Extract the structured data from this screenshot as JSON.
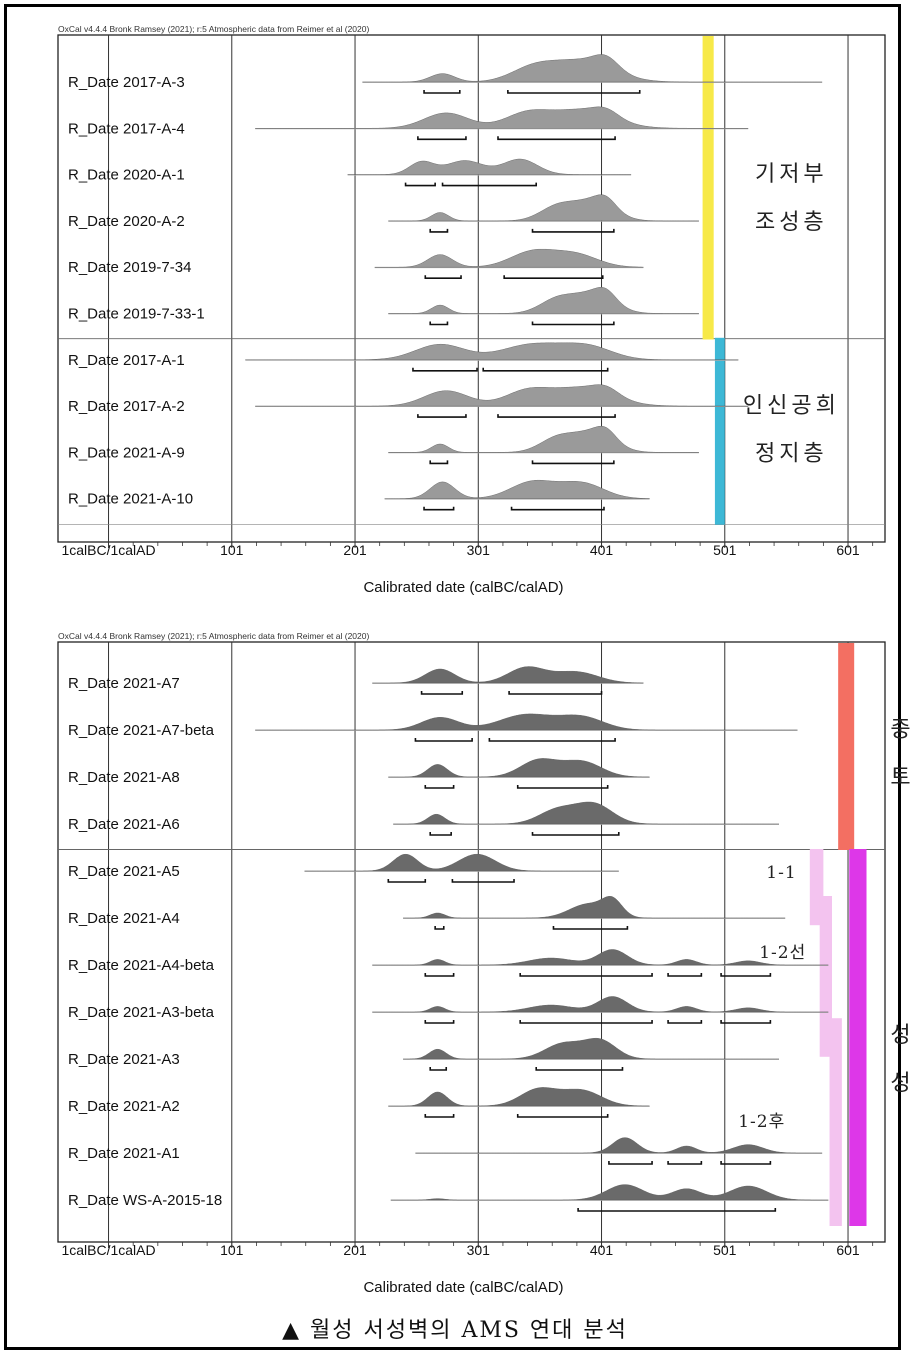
{
  "caption": "▲ 월성 서성벽의 AMS 연대 분석",
  "chart_data": [
    {
      "type": "ridge",
      "header": "OxCal v4.4.4 Bronk Ramsey (2021); r:5 Atmospheric data from Reimer et al (2020)",
      "xlabel": "Calibrated date (calBC/calAD)",
      "xlim": [
        -40,
        631
      ],
      "xticks": [
        {
          "value": 1,
          "label": "1calBC/1calAD"
        },
        {
          "value": 101,
          "label": "101"
        },
        {
          "value": 201,
          "label": "201"
        },
        {
          "value": 301,
          "label": "301"
        },
        {
          "value": 401,
          "label": "401"
        },
        {
          "value": 501,
          "label": "501"
        },
        {
          "value": 601,
          "label": "601"
        }
      ],
      "divider_after": 5,
      "samples": [
        {
          "label": "R_Date 2017-A-3",
          "range": [
            207,
            580
          ],
          "peaks": [
            [
              272,
              10,
              0.3
            ],
            [
              345,
              18,
              0.45
            ],
            [
              385,
              25,
              0.75
            ],
            [
              405,
              10,
              0.4
            ]
          ],
          "bars": [
            [
              257,
              286
            ],
            [
              325,
              432
            ]
          ]
        },
        {
          "label": "R_Date 2017-A-4",
          "range": [
            120,
            520
          ],
          "peaks": [
            [
              275,
              18,
              0.55
            ],
            [
              340,
              18,
              0.5
            ],
            [
              385,
              25,
              0.65
            ],
            [
              405,
              10,
              0.25
            ]
          ],
          "bars": [
            [
              252,
              291
            ],
            [
              317,
              412
            ]
          ]
        },
        {
          "label": "R_Date 2020-A-1",
          "range": [
            195,
            425
          ],
          "peaks": [
            [
              255,
              10,
              0.45
            ],
            [
              290,
              15,
              0.5
            ],
            [
              335,
              14,
              0.55
            ]
          ],
          "bars": [
            [
              242,
              266
            ],
            [
              272,
              348
            ]
          ]
        },
        {
          "label": "R_Date 2020-A-2",
          "range": [
            228,
            480
          ],
          "peaks": [
            [
              270,
              7,
              0.3
            ],
            [
              365,
              14,
              0.5
            ],
            [
              395,
              16,
              0.7
            ],
            [
              405,
              8,
              0.3
            ]
          ],
          "bars": [
            [
              262,
              276
            ],
            [
              345,
              411
            ]
          ]
        },
        {
          "label": "R_Date 2019-7-34",
          "range": [
            217,
            435
          ],
          "peaks": [
            [
              270,
              10,
              0.45
            ],
            [
              345,
              18,
              0.55
            ],
            [
              380,
              18,
              0.45
            ]
          ],
          "bars": [
            [
              258,
              287
            ],
            [
              322,
              402
            ]
          ]
        },
        {
          "label": "R_Date 2019-7-33-1",
          "range": [
            228,
            480
          ],
          "peaks": [
            [
              270,
              7,
              0.3
            ],
            [
              365,
              14,
              0.5
            ],
            [
              395,
              16,
              0.7
            ],
            [
              405,
              8,
              0.3
            ]
          ],
          "bars": [
            [
              262,
              276
            ],
            [
              345,
              411
            ]
          ]
        },
        {
          "label": "R_Date 2017-A-1",
          "range": [
            112,
            512
          ],
          "peaks": [
            [
              270,
              20,
              0.55
            ],
            [
              345,
              25,
              0.55
            ],
            [
              390,
              20,
              0.45
            ]
          ],
          "bars": [
            [
              248,
              300
            ],
            [
              305,
              406
            ]
          ]
        },
        {
          "label": "R_Date 2017-A-2",
          "range": [
            120,
            520
          ],
          "peaks": [
            [
              275,
              18,
              0.55
            ],
            [
              340,
              18,
              0.5
            ],
            [
              385,
              25,
              0.65
            ],
            [
              405,
              10,
              0.25
            ]
          ],
          "bars": [
            [
              252,
              291
            ],
            [
              317,
              412
            ]
          ]
        },
        {
          "label": "R_Date 2021-A-9",
          "range": [
            228,
            480
          ],
          "peaks": [
            [
              270,
              7,
              0.3
            ],
            [
              365,
              14,
              0.5
            ],
            [
              395,
              16,
              0.7
            ],
            [
              405,
              8,
              0.3
            ]
          ],
          "bars": [
            [
              262,
              276
            ],
            [
              345,
              411
            ]
          ]
        },
        {
          "label": "R_Date 2021-A-10",
          "range": [
            225,
            440
          ],
          "peaks": [
            [
              272,
              10,
              0.6
            ],
            [
              345,
              18,
              0.6
            ],
            [
              385,
              18,
              0.55
            ]
          ],
          "bars": [
            [
              257,
              281
            ],
            [
              328,
              403
            ]
          ]
        }
      ],
      "phase_bars": [
        {
          "color": "#f7e948",
          "x": [
            483,
            492
          ],
          "rows": [
            0,
            5
          ]
        },
        {
          "color": "#3db8d6",
          "x": [
            493,
            501
          ],
          "rows": [
            6,
            9
          ]
        }
      ],
      "group_labels": [
        {
          "lines": [
            "기저부",
            "조성층"
          ],
          "x": 555,
          "rows": [
            0,
            5
          ]
        },
        {
          "lines": [
            "인신공희",
            "정지층"
          ],
          "x": 555,
          "rows": [
            6,
            9
          ]
        }
      ]
    },
    {
      "type": "ridge",
      "header": "OxCal v4.4.4 Bronk Ramsey (2021); r:5 Atmospheric data from Reimer et al (2020)",
      "xlabel": "Calibrated date (calBC/calAD)",
      "xlim": [
        -40,
        631
      ],
      "xticks": [
        {
          "value": 1,
          "label": "1calBC/1calAD"
        },
        {
          "value": 101,
          "label": "101"
        },
        {
          "value": 201,
          "label": "201"
        },
        {
          "value": 301,
          "label": "301"
        },
        {
          "value": 401,
          "label": "401"
        },
        {
          "value": 501,
          "label": "501"
        },
        {
          "value": 601,
          "label": "601"
        }
      ],
      "divider_after": 3,
      "samples": [
        {
          "label": "R_Date 2021-A7",
          "range": [
            215,
            435
          ],
          "peaks": [
            [
              270,
              12,
              0.5
            ],
            [
              340,
              15,
              0.55
            ],
            [
              380,
              18,
              0.4
            ]
          ],
          "bars": [
            [
              255,
              288
            ],
            [
              326,
              401
            ]
          ]
        },
        {
          "label": "R_Date 2021-A7-beta",
          "range": [
            120,
            560
          ],
          "peaks": [
            [
              270,
              15,
              0.45
            ],
            [
              340,
              22,
              0.55
            ],
            [
              385,
              18,
              0.45
            ]
          ],
          "bars": [
            [
              250,
              296
            ],
            [
              310,
              412
            ]
          ]
        },
        {
          "label": "R_Date 2021-A8",
          "range": [
            228,
            440
          ],
          "peaks": [
            [
              268,
              8,
              0.45
            ],
            [
              350,
              15,
              0.6
            ],
            [
              385,
              16,
              0.55
            ]
          ],
          "bars": [
            [
              258,
              281
            ],
            [
              333,
              406
            ]
          ]
        },
        {
          "label": "R_Date 2021-A6",
          "range": [
            232,
            545
          ],
          "peaks": [
            [
              267,
              7,
              0.35
            ],
            [
              365,
              15,
              0.5
            ],
            [
              395,
              15,
              0.7
            ]
          ],
          "bars": [
            [
              262,
              279
            ],
            [
              345,
              415
            ]
          ]
        },
        {
          "label": "R_Date 2021-A5",
          "range": [
            160,
            415
          ],
          "peaks": [
            [
              242,
              10,
              0.6
            ],
            [
              300,
              15,
              0.6
            ]
          ],
          "bars": [
            [
              228,
              258
            ],
            [
              280,
              330
            ]
          ]
        },
        {
          "label": "R_Date 2021-A4",
          "range": [
            240,
            550
          ],
          "peaks": [
            [
              268,
              6,
              0.18
            ],
            [
              390,
              15,
              0.5
            ],
            [
              410,
              8,
              0.55
            ]
          ],
          "bars": [
            [
              266,
              273
            ],
            [
              362,
              422
            ]
          ]
        },
        {
          "label": "R_Date 2021-A4-beta",
          "range": [
            215,
            585
          ],
          "peaks": [
            [
              268,
              6,
              0.2
            ],
            [
              360,
              18,
              0.25
            ],
            [
              410,
              12,
              0.55
            ],
            [
              470,
              8,
              0.2
            ],
            [
              520,
              10,
              0.15
            ]
          ],
          "bars": [
            [
              258,
              281
            ],
            [
              335,
              442
            ],
            [
              455,
              482
            ],
            [
              498,
              538
            ]
          ]
        },
        {
          "label": "R_Date 2021-A3-beta",
          "range": [
            215,
            585
          ],
          "peaks": [
            [
              268,
              6,
              0.2
            ],
            [
              360,
              18,
              0.25
            ],
            [
              410,
              12,
              0.55
            ],
            [
              470,
              8,
              0.2
            ],
            [
              520,
              10,
              0.15
            ]
          ],
          "bars": [
            [
              258,
              281
            ],
            [
              335,
              442
            ],
            [
              455,
              482
            ],
            [
              498,
              538
            ]
          ]
        },
        {
          "label": "R_Date 2021-A3",
          "range": [
            240,
            545
          ],
          "peaks": [
            [
              268,
              7,
              0.35
            ],
            [
              370,
              15,
              0.55
            ],
            [
              400,
              13,
              0.65
            ]
          ],
          "bars": [
            [
              262,
              275
            ],
            [
              348,
              418
            ]
          ]
        },
        {
          "label": "R_Date 2021-A2",
          "range": [
            228,
            440
          ],
          "peaks": [
            [
              268,
              8,
              0.5
            ],
            [
              350,
              15,
              0.6
            ],
            [
              385,
              16,
              0.55
            ]
          ],
          "bars": [
            [
              258,
              281
            ],
            [
              333,
              406
            ]
          ]
        },
        {
          "label": "R_Date 2021-A1",
          "range": [
            250,
            580
          ],
          "peaks": [
            [
              420,
              10,
              0.55
            ],
            [
              470,
              8,
              0.25
            ],
            [
              520,
              12,
              0.3
            ]
          ],
          "bars": [
            [
              407,
              442
            ],
            [
              455,
              482
            ],
            [
              498,
              538
            ]
          ]
        },
        {
          "label": "R_Date WS-A-2015-18",
          "range": [
            230,
            585
          ],
          "peaks": [
            [
              268,
              6,
              0.05
            ],
            [
              420,
              15,
              0.55
            ],
            [
              470,
              12,
              0.4
            ],
            [
              520,
              15,
              0.5
            ]
          ],
          "bars": [
            [
              382,
              542
            ]
          ]
        }
      ],
      "phase_bars": [
        {
          "color": "#f36f62",
          "x": [
            593,
            606
          ],
          "rows": [
            0,
            3
          ]
        },
        {
          "color": "#dd37e8",
          "x": [
            602,
            616
          ],
          "rows": [
            4,
            11
          ]
        },
        {
          "color": "#f3c3ef",
          "x": [
            570,
            581
          ],
          "rows": [
            4,
            4.6
          ]
        },
        {
          "color": "#f3c3ef",
          "x": [
            578,
            588
          ],
          "rows": [
            5,
            7.4
          ]
        },
        {
          "color": "#f3c3ef",
          "x": [
            586,
            596
          ],
          "rows": [
            7.6,
            11
          ]
        }
      ],
      "group_labels": [
        {
          "lines": [
            "중심",
            "토루"
          ],
          "x": 655,
          "rows": [
            0,
            3
          ]
        },
        {
          "lines": [
            "성벽",
            "성토"
          ],
          "x": 655,
          "rows": [
            7,
            9
          ]
        },
        {
          "lines": [
            "1-1"
          ],
          "x": 547,
          "rows": [
            4,
            4
          ]
        },
        {
          "lines": [
            "1-2선"
          ],
          "x": 548,
          "rows": [
            5.7,
            5.7
          ]
        },
        {
          "lines": [
            "1-2후"
          ],
          "x": 531,
          "rows": [
            9.3,
            9.3
          ]
        }
      ]
    }
  ]
}
